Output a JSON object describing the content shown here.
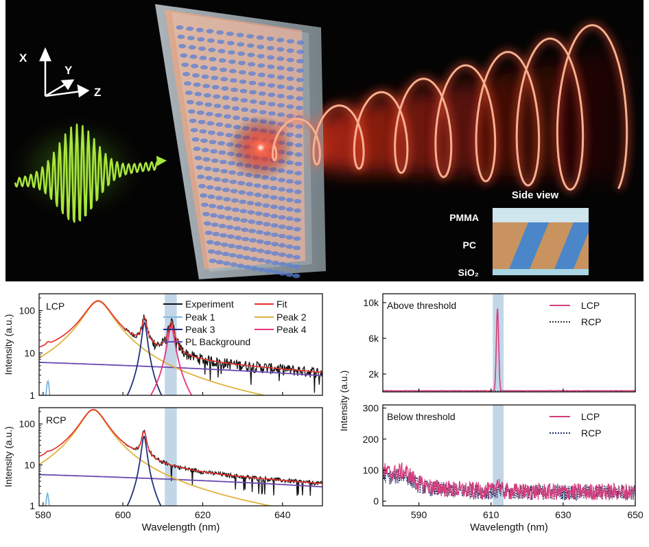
{
  "illustration": {
    "axes": {
      "x": "X",
      "y": "Y",
      "z": "Z"
    },
    "side_view_title": "Side view",
    "layers": [
      "PMMA",
      "PC",
      "SiO₂"
    ],
    "colors": {
      "background": "#050404",
      "pump_wave": "#a8e63c",
      "emission": "#ff3b24",
      "pc_orange": "#c8935f",
      "pc_blue": "#4a86c8",
      "pmma": "#cfe6ee",
      "sio2": "#a9d6e3"
    }
  },
  "chart_data": [
    {
      "type": "line",
      "panel": "left-top",
      "label": "LCP",
      "x_ticks": [
        "580",
        "600",
        "620",
        "640"
      ],
      "y_ticks": [
        "1",
        "10",
        "100"
      ],
      "ylabel": "Intensity (a.u.)",
      "xlim": [
        579,
        650
      ],
      "ylim": [
        1,
        250
      ],
      "yscale": "log",
      "highlight_band": [
        610.5,
        613.5
      ],
      "legend": [
        "Experiment",
        "Fit",
        "Peak 1",
        "Peak 2",
        "Peak 3",
        "Peak 4",
        "PL Background"
      ],
      "colors": {
        "Experiment": "#111111",
        "Fit": "#e8302a",
        "Peak 1": "#7bb8de",
        "Peak 2": "#e0b23c",
        "Peak 3": "#1f2f7a",
        "Peak 4": "#e8317f",
        "PL Background": "#6a48b0",
        "band": "#aec8e0"
      },
      "components": {
        "Peak 1": {
          "center": 581.2,
          "amplitude": 2.2,
          "fwhm": 0.9
        },
        "Peak 2": {
          "center": 593.8,
          "amplitude": 165,
          "fwhm": 6.5
        },
        "Peak 3": {
          "center": 605.4,
          "amplitude": 52,
          "fwhm": 1.2
        },
        "Peak 4": {
          "center": 612.1,
          "amplitude": 42,
          "fwhm": 1.6
        },
        "PL Background": {
          "start": 6,
          "end": 2.9
        }
      },
      "experiment_noise": 0.3
    },
    {
      "type": "line",
      "panel": "left-bottom",
      "label": "RCP",
      "x_ticks": [
        "580",
        "600",
        "620",
        "640"
      ],
      "y_ticks": [
        "1",
        "10",
        "100"
      ],
      "xlabel": "Wavelength (nm)",
      "ylabel": "Intensity (a.u.)",
      "xlim": [
        579,
        650
      ],
      "ylim": [
        1,
        250
      ],
      "yscale": "log",
      "highlight_band": [
        610.5,
        613.5
      ],
      "colors": {
        "Experiment": "#111111",
        "Fit": "#e8302a",
        "Peak 1": "#7bb8de",
        "Peak 2": "#e0b23c",
        "Peak 3": "#1f2f7a",
        "PL Background": "#6a48b0",
        "band": "#aec8e0"
      },
      "components": {
        "Peak 1": {
          "center": 581.1,
          "amplitude": 2.0,
          "fwhm": 0.9
        },
        "Peak 2": {
          "center": 592.6,
          "amplitude": 220,
          "fwhm": 6.0
        },
        "Peak 3": {
          "center": 605.3,
          "amplitude": 50,
          "fwhm": 1.2
        },
        "PL Background": {
          "start": 5.8,
          "end": 2.9
        }
      },
      "experiment_noise": 0.12
    },
    {
      "type": "line",
      "panel": "right-top",
      "label": "Above threshold",
      "y_ticks": [
        "2k",
        "6k",
        "10k"
      ],
      "y_tick_values": [
        2000,
        6000,
        10000
      ],
      "xlim": [
        580,
        650
      ],
      "ylim": [
        0,
        11000
      ],
      "highlight_band": [
        610.5,
        613.5
      ],
      "legend": [
        "LCP",
        "RCP"
      ],
      "colors": {
        "LCP": "#d63c7c",
        "RCP": "#333333",
        "band": "#aec8e0"
      },
      "series": [
        {
          "name": "LCP",
          "peak_center": 611.8,
          "peak_height": 9200,
          "peak_width": 0.45,
          "baseline": 120
        },
        {
          "name": "RCP",
          "baseline": 110
        }
      ]
    },
    {
      "type": "line",
      "panel": "right-bottom",
      "label": "Below threshold",
      "x_ticks": [
        "590",
        "610",
        "630",
        "650"
      ],
      "y_ticks": [
        "0",
        "100",
        "200",
        "300"
      ],
      "xlabel": "Wavelength (nm)",
      "ylabel": "Intensity (a.u.)",
      "xlim": [
        580,
        650
      ],
      "ylim": [
        -15,
        310
      ],
      "highlight_band": [
        610.5,
        613.5
      ],
      "legend": [
        "LCP",
        "RCP"
      ],
      "colors": {
        "LCP": "#d63c7c",
        "RCP": "#1d2b5c",
        "band": "#aec8e0"
      },
      "series": [
        {
          "name": "LCP",
          "start": 100,
          "hump_center": 586,
          "hump_height": 115,
          "tail": 30,
          "noise": 28
        },
        {
          "name": "RCP",
          "start": 85,
          "hump_center": 586,
          "hump_height": 95,
          "tail": 28,
          "noise": 25
        }
      ]
    }
  ]
}
